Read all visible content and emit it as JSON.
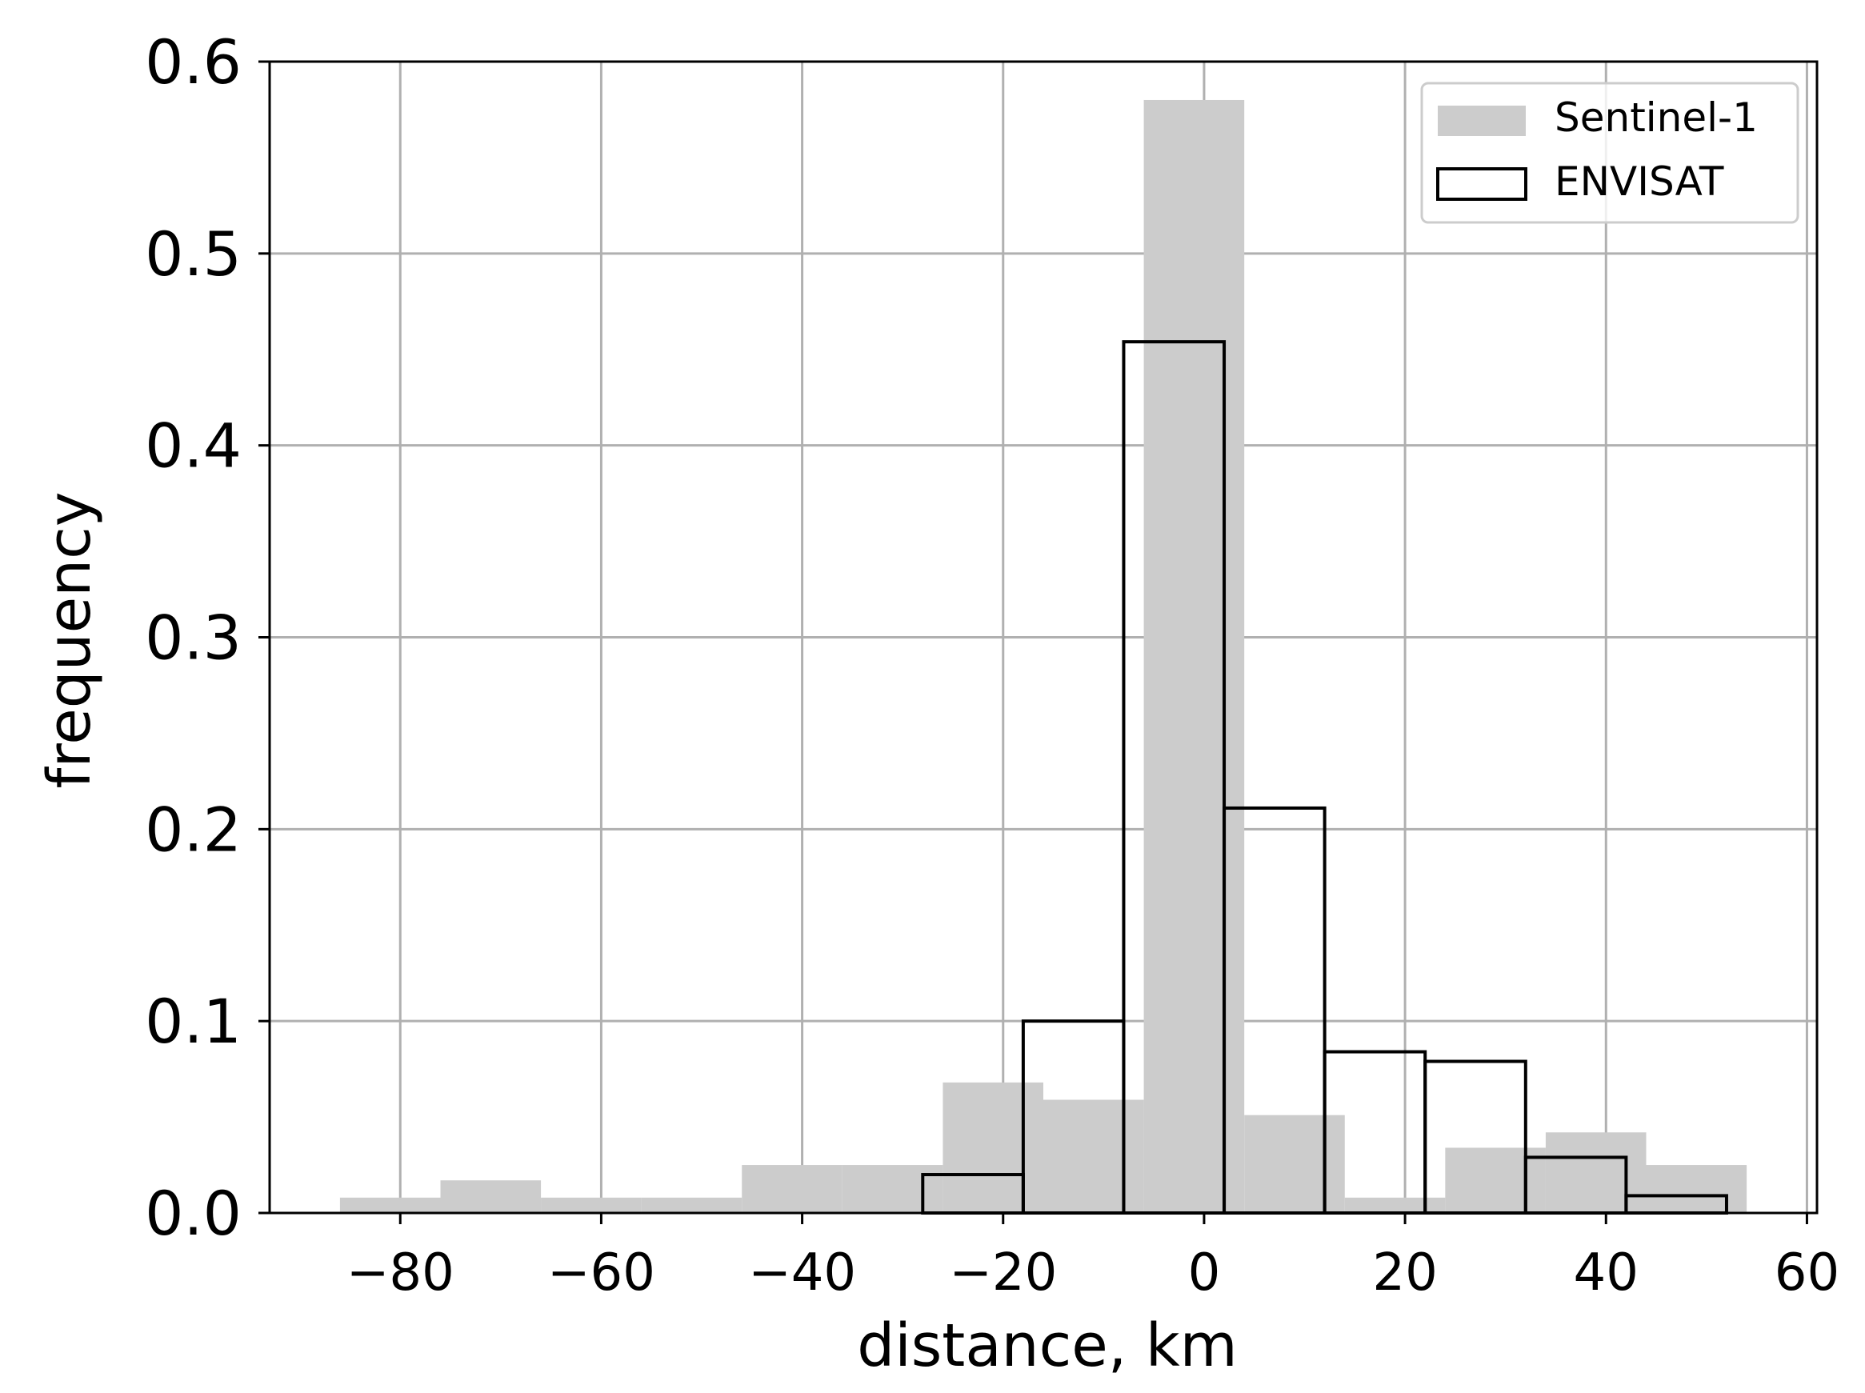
{
  "chart_data": {
    "type": "bar",
    "subtype": "histogram",
    "title": "",
    "xlabel": "distance, km",
    "ylabel": "frequency",
    "xlim": [
      -93,
      61
    ],
    "ylim": [
      0,
      0.6
    ],
    "x_ticks": [
      -80,
      -60,
      -40,
      -20,
      0,
      20,
      40,
      60
    ],
    "x_tick_labels": [
      "−80",
      "−60",
      "−40",
      "−20",
      "0",
      "20",
      "40",
      "60"
    ],
    "y_ticks": [
      0.0,
      0.1,
      0.2,
      0.3,
      0.4,
      0.5,
      0.6
    ],
    "y_tick_labels": [
      "0.0",
      "0.1",
      "0.2",
      "0.3",
      "0.4",
      "0.5",
      "0.6"
    ],
    "grid": true,
    "legend_position": "top-right",
    "series": [
      {
        "name": "Sentinel-1",
        "style": "filled",
        "color": "#cccccc",
        "bin_edges": [
          -86,
          -76,
          -66,
          -56,
          -46,
          -36,
          -26,
          -16,
          -6,
          4,
          14,
          24,
          34,
          44,
          54
        ],
        "values": [
          0.008,
          0.017,
          0.008,
          0.008,
          0.025,
          0.025,
          0.068,
          0.059,
          0.58,
          0.051,
          0.008,
          0.034,
          0.042,
          0.025
        ]
      },
      {
        "name": "ENVISAT",
        "style": "outline",
        "color": "#000000",
        "bin_edges": [
          -28,
          -18,
          -8,
          2,
          12,
          22,
          32,
          42,
          52
        ],
        "values": [
          0.02,
          0.1,
          0.454,
          0.211,
          0.084,
          0.079,
          0.029,
          0.009
        ]
      }
    ]
  }
}
